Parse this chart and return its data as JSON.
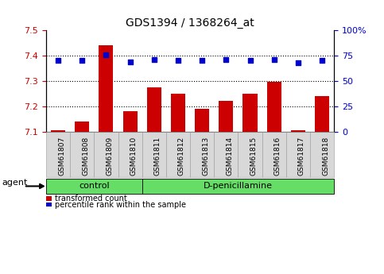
{
  "title": "GDS1394 / 1368264_at",
  "samples": [
    "GSM61807",
    "GSM61808",
    "GSM61809",
    "GSM61810",
    "GSM61811",
    "GSM61812",
    "GSM61813",
    "GSM61814",
    "GSM61815",
    "GSM61816",
    "GSM61817",
    "GSM61818"
  ],
  "bar_values": [
    7.105,
    7.14,
    7.44,
    7.18,
    7.275,
    7.25,
    7.19,
    7.22,
    7.25,
    7.295,
    7.105,
    7.24
  ],
  "percentile_values": [
    70,
    70,
    76,
    69,
    71,
    70,
    70,
    71,
    70,
    71,
    68,
    70
  ],
  "bar_color": "#cc0000",
  "percentile_color": "#0000cc",
  "ylim_left": [
    7.1,
    7.5
  ],
  "ylim_right": [
    0,
    100
  ],
  "yticks_left": [
    7.1,
    7.2,
    7.3,
    7.4,
    7.5
  ],
  "yticks_right": [
    0,
    25,
    50,
    75,
    100
  ],
  "ytick_labels_right": [
    "0",
    "25",
    "50",
    "75",
    "100%"
  ],
  "grid_lines": [
    7.2,
    7.3,
    7.4
  ],
  "n_control": 4,
  "n_treatment": 8,
  "control_label": "control",
  "treatment_label": "D-penicillamine",
  "agent_label": "agent",
  "legend_bar_label": "transformed count",
  "legend_pct_label": "percentile rank within the sample",
  "bar_width": 0.6,
  "base_value": 7.1,
  "tick_bg_color": "#d8d8d8",
  "group_bg_color": "#66dd66",
  "figsize": [
    4.83,
    3.45
  ],
  "dpi": 100
}
